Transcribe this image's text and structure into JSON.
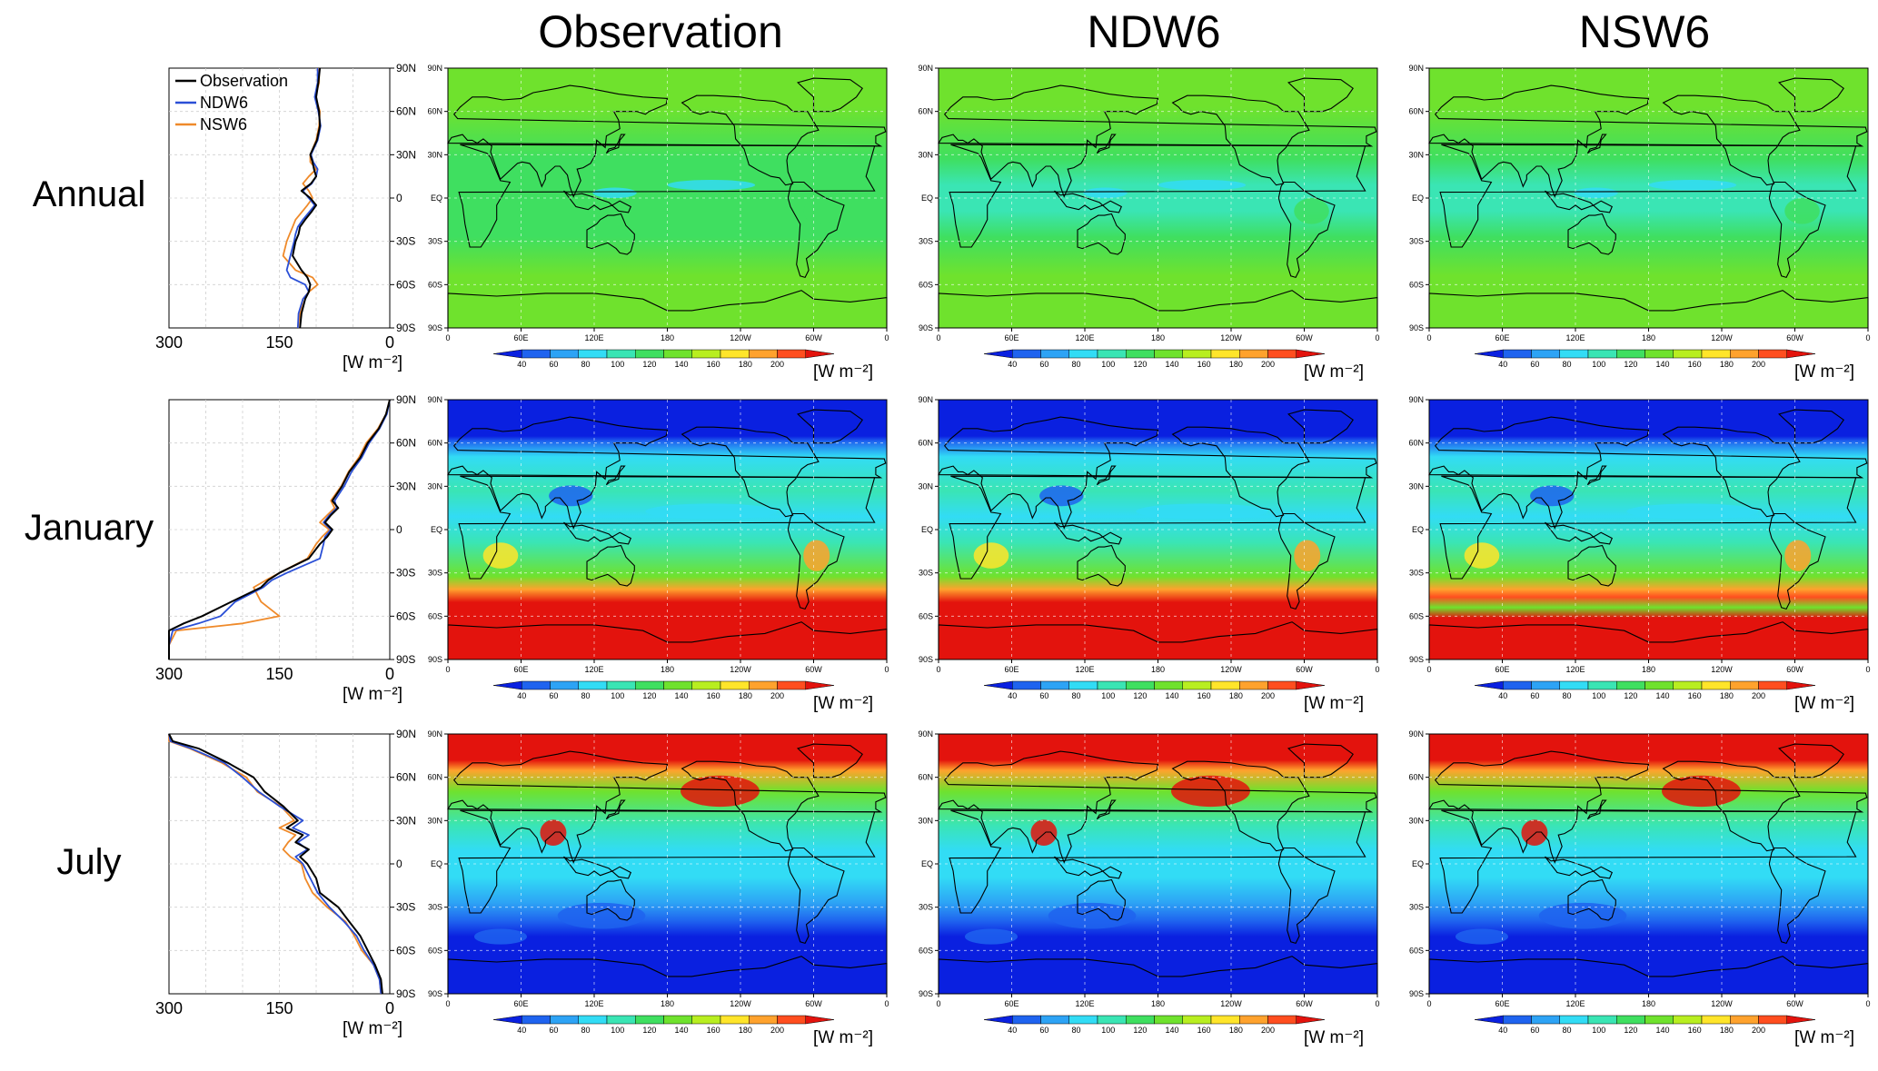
{
  "figure": {
    "columns": [
      "Observation",
      "NDW6",
      "NSW6"
    ],
    "rows": [
      "Annual",
      "January",
      "July"
    ],
    "unit_label": "[W m⁻²]"
  },
  "chart_data": [
    {
      "type": "line",
      "name": "Zonal mean profiles",
      "xlabel": "[W m⁻²]",
      "x_ticks": [
        "300",
        "150",
        "0"
      ],
      "x_range": [
        300,
        0
      ],
      "y_ticks": [
        "90N",
        "60N",
        "30N",
        "0",
        "30S",
        "60S",
        "90S"
      ],
      "y_range": [
        -90,
        90
      ],
      "legend": [
        "Observation",
        "NDW6",
        "NSW6"
      ],
      "series_colors": {
        "Observation": "#000000",
        "NDW6": "#2a4fd6",
        "NSW6": "#ef8a2a"
      },
      "panels": [
        {
          "row": "Annual",
          "lat": [
            90,
            80,
            70,
            60,
            50,
            40,
            30,
            25,
            20,
            15,
            10,
            5,
            0,
            -5,
            -10,
            -15,
            -20,
            -25,
            -30,
            -40,
            -50,
            -55,
            -60,
            -65,
            -70,
            -80,
            -90
          ],
          "series": [
            {
              "name": "Observation",
              "values": [
                95,
                97,
                100,
                96,
                95,
                99,
                108,
                105,
                103,
                100,
                107,
                120,
                108,
                100,
                107,
                115,
                122,
                124,
                128,
                132,
                120,
                112,
                108,
                110,
                115,
                120,
                122
              ]
            },
            {
              "name": "NDW6",
              "values": [
                98,
                98,
                102,
                97,
                94,
                98,
                107,
                104,
                98,
                100,
                106,
                118,
                110,
                102,
                110,
                118,
                125,
                128,
                130,
                135,
                140,
                135,
                115,
                110,
                118,
                124,
                125
              ]
            },
            {
              "name": "NSW6",
              "values": [
                96,
                96,
                101,
                95,
                96,
                100,
                108,
                108,
                100,
                110,
                118,
                110,
                105,
                112,
                120,
                128,
                132,
                136,
                140,
                145,
                128,
                105,
                98,
                110,
                118,
                122,
                125
              ]
            }
          ]
        },
        {
          "row": "January",
          "lat": [
            90,
            80,
            70,
            60,
            50,
            40,
            30,
            20,
            15,
            10,
            5,
            0,
            -5,
            -10,
            -20,
            -30,
            -35,
            -40,
            -50,
            -60,
            -65,
            -70,
            -80,
            -90
          ],
          "series": [
            {
              "name": "Observation",
              "values": [
                0,
                5,
                15,
                30,
                40,
                55,
                65,
                78,
                70,
                80,
                88,
                78,
                85,
                95,
                110,
                150,
                165,
                175,
                215,
                255,
                280,
                300,
                302,
                305
              ]
            },
            {
              "name": "NDW6",
              "values": [
                0,
                4,
                14,
                28,
                38,
                52,
                62,
                75,
                72,
                82,
                90,
                80,
                88,
                90,
                95,
                140,
                160,
                172,
                210,
                230,
                260,
                295,
                302,
                305
              ]
            },
            {
              "name": "NSW6",
              "values": [
                0,
                5,
                16,
                32,
                42,
                56,
                66,
                80,
                75,
                85,
                95,
                82,
                92,
                100,
                112,
                150,
                168,
                185,
                175,
                150,
                200,
                290,
                300,
                305
              ]
            }
          ]
        },
        {
          "row": "July",
          "lat": [
            90,
            85,
            80,
            70,
            60,
            50,
            40,
            30,
            25,
            20,
            15,
            10,
            5,
            0,
            -10,
            -20,
            -30,
            -40,
            -50,
            -60,
            -70,
            -80,
            -90
          ],
          "series": [
            {
              "name": "Observation",
              "values": [
                300,
                295,
                260,
                220,
                185,
                170,
                145,
                125,
                140,
                118,
                128,
                110,
                122,
                112,
                100,
                95,
                70,
                55,
                40,
                30,
                20,
                12,
                10
              ]
            },
            {
              "name": "NDW6",
              "values": [
                305,
                298,
                270,
                225,
                200,
                178,
                150,
                118,
                132,
                110,
                125,
                112,
                128,
                118,
                108,
                98,
                82,
                62,
                45,
                35,
                22,
                14,
                12
              ]
            },
            {
              "name": "NSW6",
              "values": [
                305,
                300,
                272,
                228,
                195,
                180,
                148,
                130,
                150,
                128,
                138,
                145,
                135,
                120,
                115,
                105,
                85,
                60,
                48,
                38,
                22,
                14,
                12
              ]
            }
          ]
        }
      ]
    },
    {
      "type": "heatmap",
      "name": "Maps",
      "x_ticks": [
        "0",
        "60E",
        "120E",
        "180",
        "120W",
        "60W",
        "0"
      ],
      "y_ticks": [
        "90N",
        "60N",
        "30N",
        "EQ",
        "30S",
        "60S",
        "90S"
      ],
      "colorbar": {
        "ticks": [
          "40",
          "60",
          "80",
          "100",
          "120",
          "140",
          "160",
          "180",
          "200"
        ],
        "colors": [
          "#0a20e0",
          "#1f63ef",
          "#2da3f5",
          "#32dcf5",
          "#3ae5b4",
          "#3fdf60",
          "#6fe22d",
          "#b8ee20",
          "#ffe52a",
          "#ffa22d",
          "#ff4e1f",
          "#e3130d"
        ],
        "label": "[W m⁻²]"
      },
      "background_level": {
        "Annual": {
          "Observation": 130,
          "NDW6": 125,
          "NSW6": 125
        },
        "January": {
          "Observation": 110,
          "NDW6": 105,
          "NSW6": 110
        },
        "July": {
          "Observation": 100,
          "NDW6": 100,
          "NSW6": 105
        }
      }
    }
  ]
}
